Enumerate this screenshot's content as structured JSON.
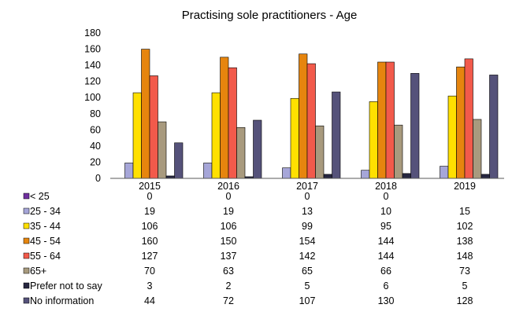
{
  "chart_data": {
    "type": "bar",
    "title": "Practising sole practitioners - Age",
    "xlabel": "",
    "ylabel": "",
    "ylim": [
      0,
      180
    ],
    "y_ticks": [
      "0",
      "20",
      "40",
      "60",
      "80",
      "100",
      "120",
      "140",
      "160",
      "180"
    ],
    "grid": false,
    "legend": "data-table",
    "categories": [
      "2015",
      "2016",
      "2017",
      "2018",
      "2019"
    ],
    "series": [
      {
        "name": "< 25",
        "color": "#7030A0",
        "values": [
          0,
          0,
          0,
          0,
          null
        ],
        "labels": [
          "0",
          "0",
          "0",
          "0",
          ""
        ]
      },
      {
        "name": "25 - 34",
        "color": "#A6A6D8",
        "values": [
          19,
          19,
          13,
          10,
          15
        ],
        "labels": [
          "19",
          "19",
          "13",
          "10",
          "15"
        ]
      },
      {
        "name": "35 - 44",
        "color": "#FFE000",
        "values": [
          106,
          106,
          99,
          95,
          102
        ],
        "labels": [
          "106",
          "106",
          "99",
          "95",
          "102"
        ]
      },
      {
        "name": "45 - 54",
        "color": "#E6850E",
        "values": [
          160,
          150,
          154,
          144,
          138
        ],
        "labels": [
          "160",
          "150",
          "154",
          "144",
          "138"
        ]
      },
      {
        "name": "55 - 64",
        "color": "#F25A4B",
        "values": [
          127,
          137,
          142,
          144,
          148
        ],
        "labels": [
          "127",
          "137",
          "142",
          "144",
          "148"
        ]
      },
      {
        "name": "65+",
        "color": "#A89A7E",
        "values": [
          70,
          63,
          65,
          66,
          73
        ],
        "labels": [
          "70",
          "63",
          "65",
          "66",
          "73"
        ]
      },
      {
        "name": "Prefer not to say",
        "color": "#262640",
        "values": [
          3,
          2,
          5,
          6,
          5
        ],
        "labels": [
          "3",
          "2",
          "5",
          "6",
          "5"
        ]
      },
      {
        "name": "No information",
        "color": "#55527A",
        "values": [
          44,
          72,
          107,
          130,
          128
        ],
        "labels": [
          "44",
          "72",
          "107",
          "130",
          "128"
        ]
      }
    ]
  }
}
